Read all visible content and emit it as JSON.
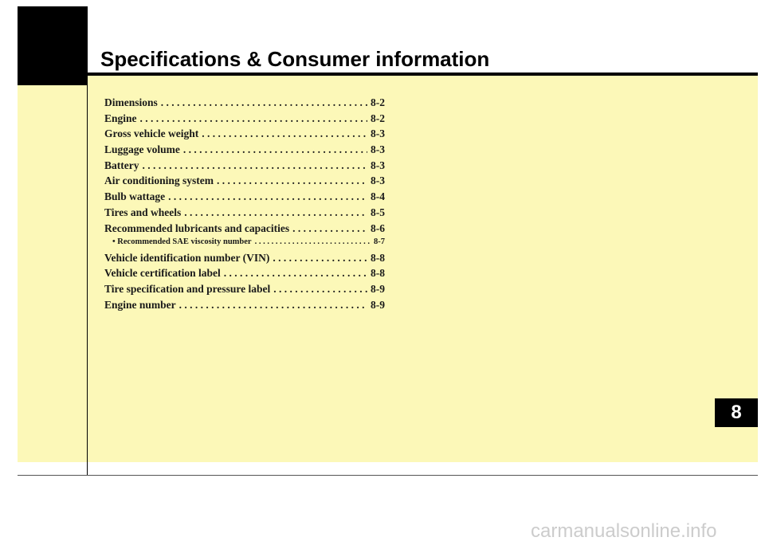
{
  "header": {
    "title": "Specifications & Consumer information"
  },
  "toc": {
    "items": [
      {
        "label": "Dimensions",
        "page": "8-2",
        "sub": false
      },
      {
        "label": "Engine",
        "page": "8-2",
        "sub": false
      },
      {
        "label": "Gross vehicle weight",
        "page": "8-3",
        "sub": false
      },
      {
        "label": "Luggage volume",
        "page": "8-3",
        "sub": false
      },
      {
        "label": "Battery",
        "page": "8-3",
        "sub": false
      },
      {
        "label": "Air conditioning system",
        "page": "8-3",
        "sub": false
      },
      {
        "label": "Bulb wattage",
        "page": "8-4",
        "sub": false
      },
      {
        "label": "Tires and wheels",
        "page": "8-5",
        "sub": false
      },
      {
        "label": "Recommended lubricants and capacities",
        "page": "8-6",
        "sub": false
      },
      {
        "label": "• Recommended SAE viscosity number",
        "page": "8-7",
        "sub": true
      },
      {
        "label": "Vehicle identification number (VIN)",
        "page": "8-8",
        "sub": false
      },
      {
        "label": "Vehicle certification label",
        "page": "8-8",
        "sub": false
      },
      {
        "label": "Tire specification and pressure label",
        "page": "8-9",
        "sub": false
      },
      {
        "label": "Engine number",
        "page": "8-9",
        "sub": false
      }
    ]
  },
  "chapter_tab": {
    "number": "8"
  },
  "footer": {
    "watermark": "carmanualsonline.info"
  }
}
